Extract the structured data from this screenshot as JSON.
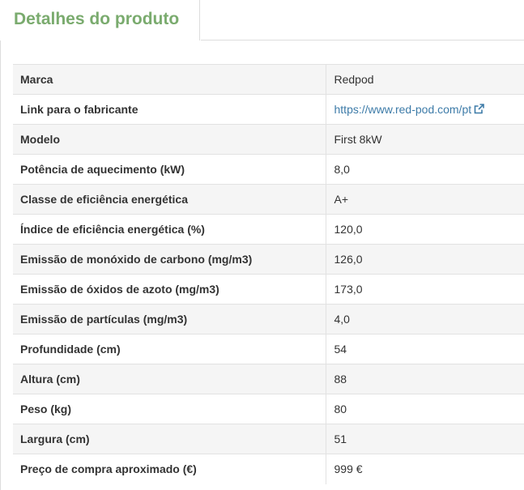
{
  "tab": {
    "title": "Detalhes do produto"
  },
  "specs": [
    {
      "label": "Marca",
      "value": "Redpod"
    },
    {
      "label": "Link para o fabricante",
      "value": "https://www.red-pod.com/pt",
      "link": true
    },
    {
      "label": "Modelo",
      "value": "First 8kW"
    },
    {
      "label": "Potência de aquecimento (kW)",
      "value": "8,0"
    },
    {
      "label": "Classe de eficiência energética",
      "value": "A+"
    },
    {
      "label": "Índice de eficiência energética (%)",
      "value": "120,0"
    },
    {
      "label": "Emissão de monóxido de carbono (mg/m3)",
      "value": "126,0"
    },
    {
      "label": "Emissão de óxidos de azoto (mg/m3)",
      "value": "173,0"
    },
    {
      "label": "Emissão de partículas (mg/m3)",
      "value": "4,0"
    },
    {
      "label": "Profundidade (cm)",
      "value": "54"
    },
    {
      "label": "Altura (cm)",
      "value": "88"
    },
    {
      "label": "Peso (kg)",
      "value": "80"
    },
    {
      "label": "Largura (cm)",
      "value": "51"
    },
    {
      "label": "Preço de compra aproximado (€)",
      "value": "999 €"
    }
  ],
  "icons": {
    "external_link": "external-link-icon"
  },
  "colors": {
    "tab_title": "#7aab6e",
    "link": "#3d7ba8",
    "stripe": "#f5f5f5"
  }
}
